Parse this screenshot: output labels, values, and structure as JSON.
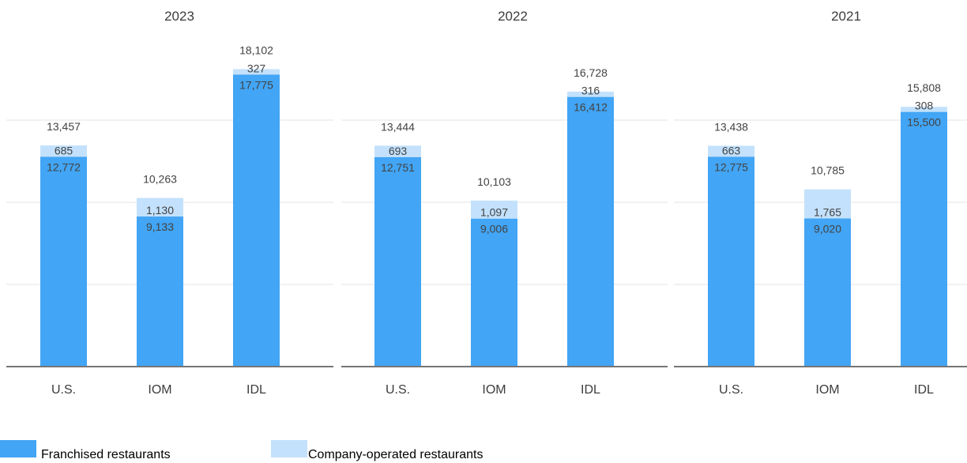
{
  "colors": {
    "franchised": "#42a5f5",
    "company_operated": "#c3e1fc",
    "gridline": "#e3e3e3",
    "baseline": "#757575",
    "label_text": "#424242",
    "title_text": "#3c3c3c"
  },
  "legend": {
    "items": [
      {
        "label": "Franchised restaurants",
        "color": "#42a5f5"
      },
      {
        "label": "Company-operated restaurants",
        "color": "#c3e1fc"
      }
    ]
  },
  "chart_data": [
    {
      "type": "bar",
      "stacked": true,
      "title": "2023",
      "categories": [
        "U.S.",
        "IOM",
        "IDL"
      ],
      "series": [
        {
          "name": "Franchised restaurants",
          "values": [
            12772,
            9133,
            17775
          ]
        },
        {
          "name": "Company-operated restaurants",
          "values": [
            685,
            1130,
            327
          ]
        }
      ],
      "value_labels": [
        [
          "12,772",
          "9,133",
          "17,775"
        ],
        [
          "685",
          "1,130",
          "327"
        ]
      ],
      "totals": [
        "13,457",
        "10,263",
        "18,102"
      ],
      "ylim": [
        0,
        20000
      ],
      "grid": true
    },
    {
      "type": "bar",
      "stacked": true,
      "title": "2022",
      "categories": [
        "U.S.",
        "IOM",
        "IDL"
      ],
      "series": [
        {
          "name": "Franchised restaurants",
          "values": [
            12751,
            9006,
            16412
          ]
        },
        {
          "name": "Company-operated restaurants",
          "values": [
            693,
            1097,
            316
          ]
        }
      ],
      "value_labels": [
        [
          "12,751",
          "9,006",
          "16,412"
        ],
        [
          "693",
          "1,097",
          "316"
        ]
      ],
      "totals": [
        "13,444",
        "10,103",
        "16,728"
      ],
      "ylim": [
        0,
        20000
      ],
      "grid": true
    },
    {
      "type": "bar",
      "stacked": true,
      "title": "2021",
      "categories": [
        "U.S.",
        "IOM",
        "IDL"
      ],
      "series": [
        {
          "name": "Franchised restaurants",
          "values": [
            12775,
            9020,
            15500
          ]
        },
        {
          "name": "Company-operated restaurants",
          "values": [
            663,
            1765,
            308
          ]
        }
      ],
      "value_labels": [
        [
          "12,775",
          "9,020",
          "15,500"
        ],
        [
          "663",
          "1,765",
          "308"
        ]
      ],
      "totals": [
        "13,438",
        "10,785",
        "15,808"
      ],
      "ylim": [
        0,
        20000
      ],
      "grid": true
    }
  ]
}
